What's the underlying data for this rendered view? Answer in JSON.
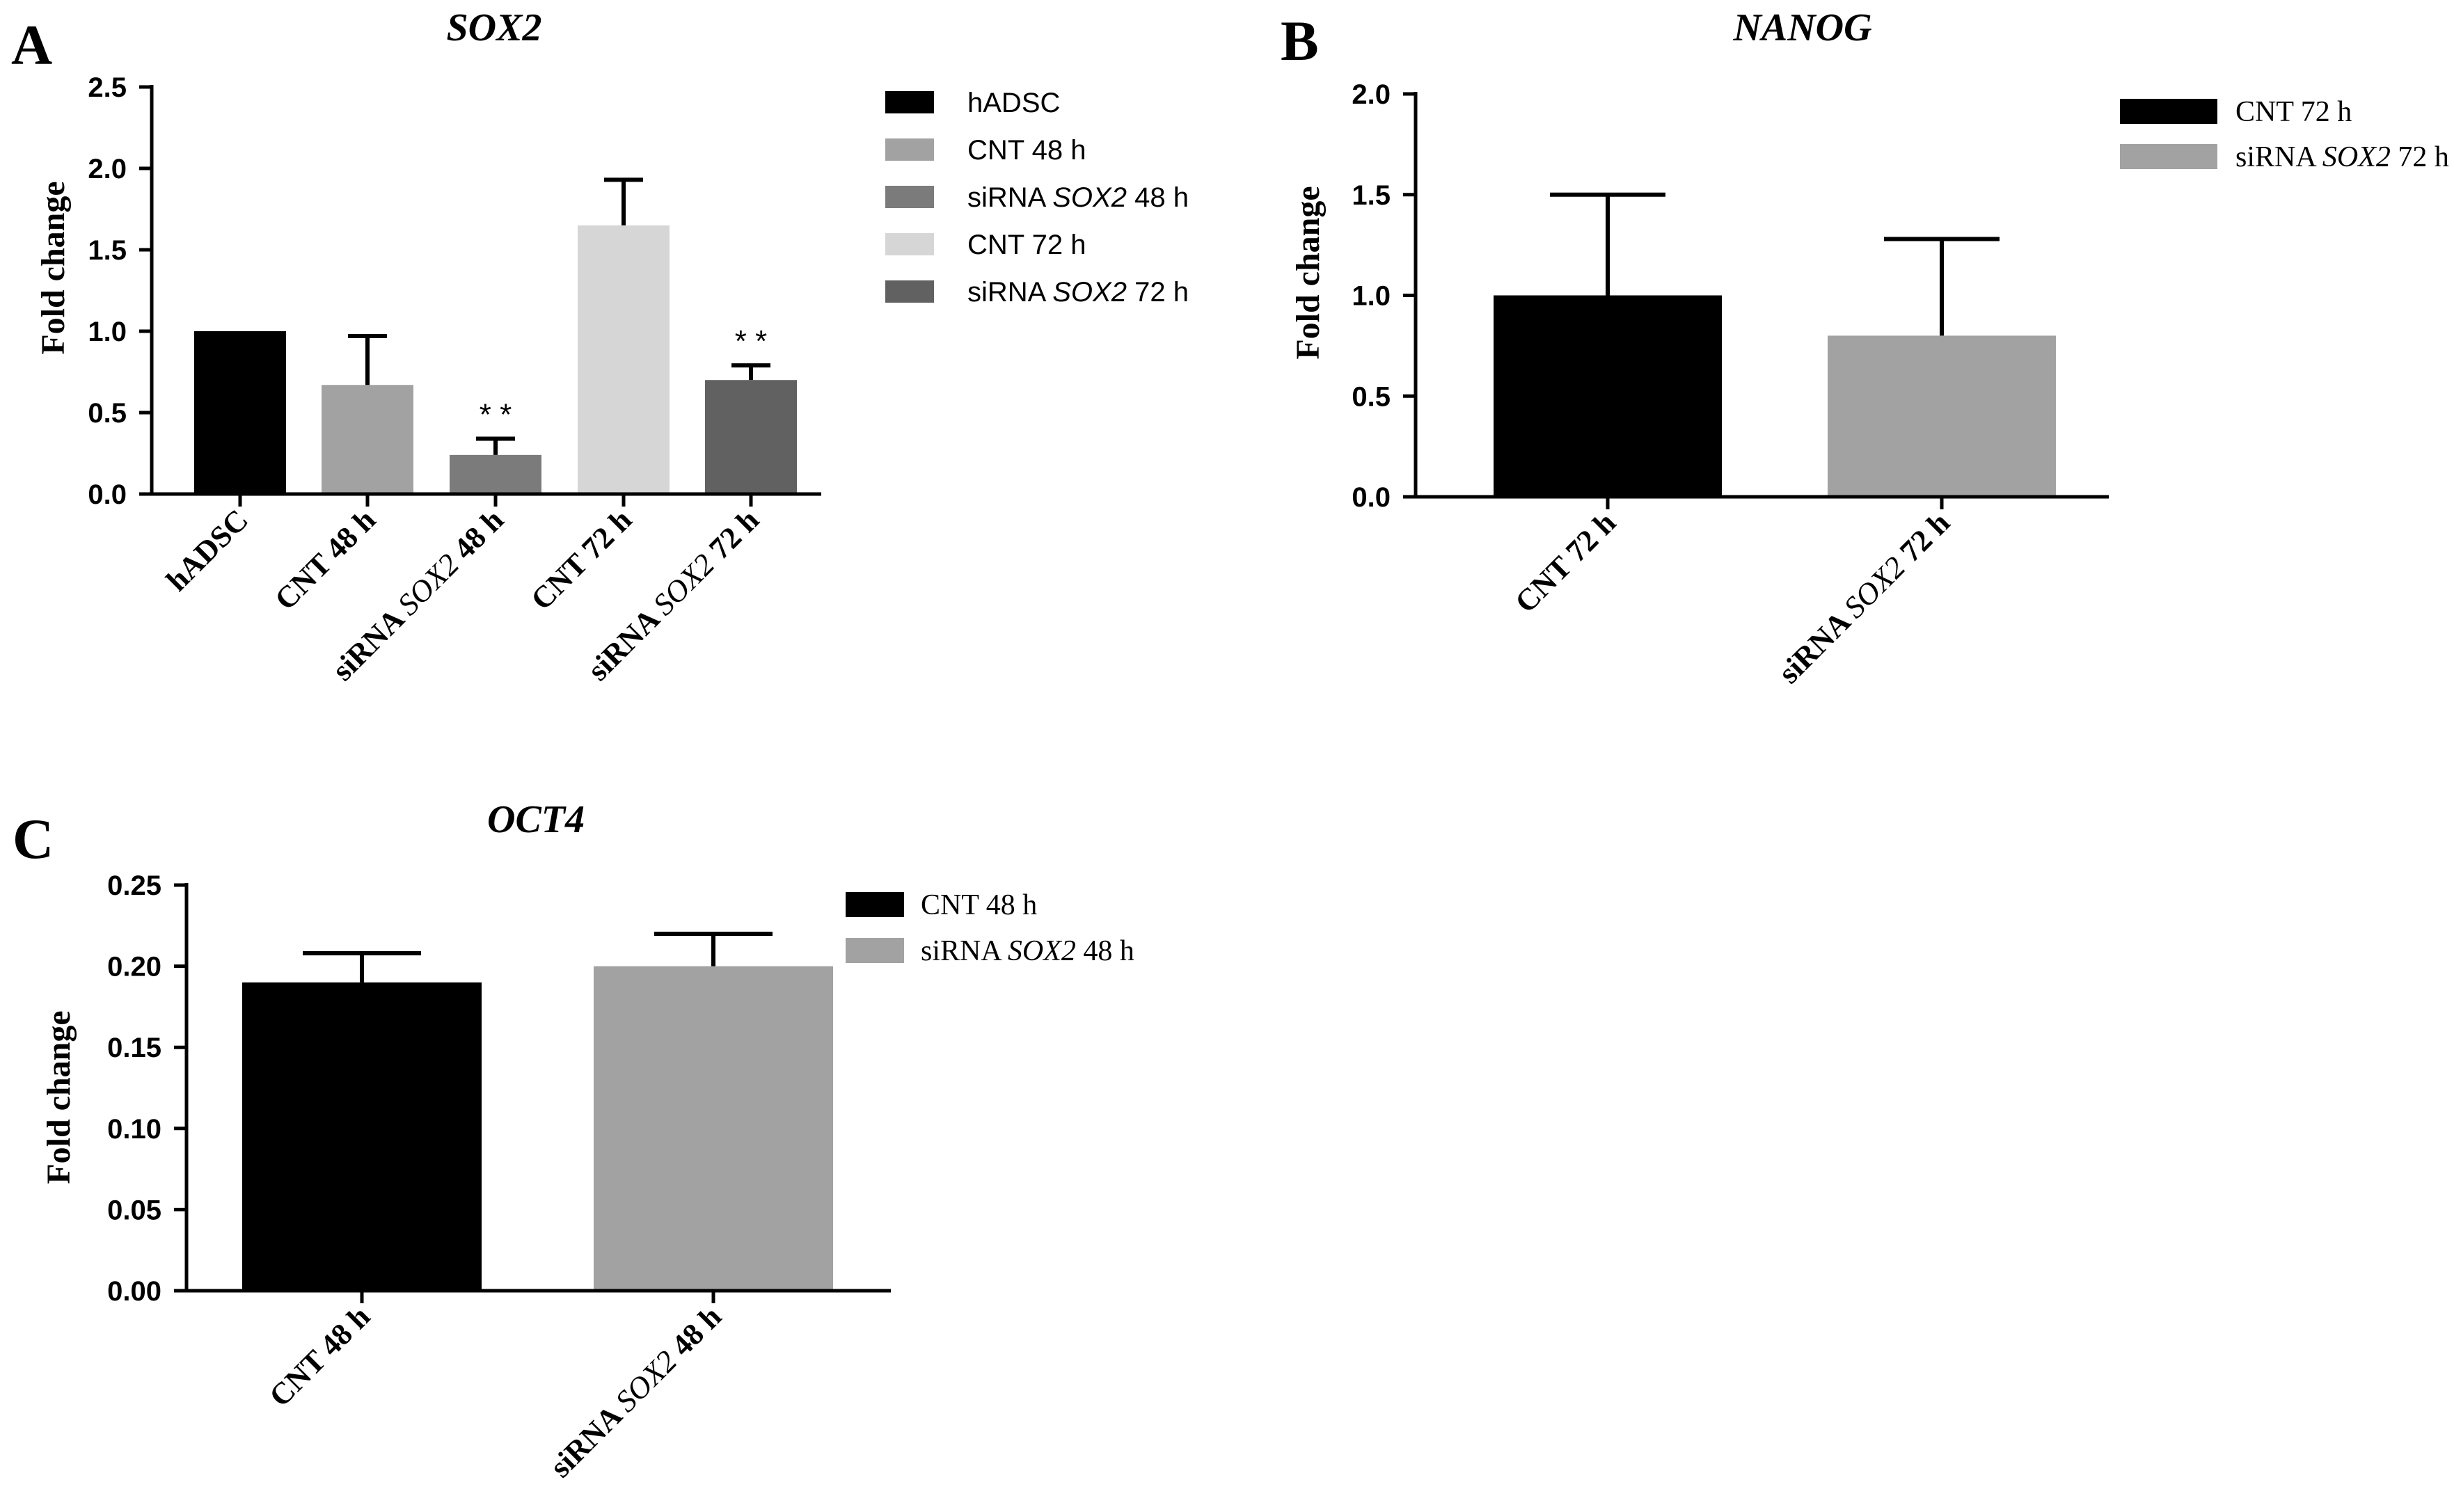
{
  "chart_data": [
    {
      "panel": "A",
      "type": "bar",
      "title": "SOX2",
      "ylabel": "Fold change",
      "ylim": [
        0,
        2.5
      ],
      "yticks": [
        "0.0",
        "0.5",
        "1.0",
        "1.5",
        "2.0",
        "2.5"
      ],
      "categories": [
        {
          "pre": "",
          "gene": "",
          "post": "hADSC"
        },
        {
          "pre": "",
          "gene": "",
          "post": "CNT 48 h"
        },
        {
          "pre": "siRNA ",
          "gene": "SOX2",
          "post": " 48 h"
        },
        {
          "pre": "",
          "gene": "",
          "post": "CNT 72 h"
        },
        {
          "pre": "siRNA ",
          "gene": "SOX2",
          "post": " 72 h"
        }
      ],
      "values": [
        1.0,
        0.67,
        0.24,
        1.65,
        0.7
      ],
      "errors": [
        0.0,
        0.3,
        0.1,
        0.28,
        0.09
      ],
      "colors": [
        "#000000",
        "#a2a2a2",
        "#7b7b7b",
        "#d6d6d6",
        "#616161"
      ],
      "significance": [
        "",
        "",
        "* *",
        "",
        "* *"
      ],
      "legend": [
        {
          "pre": "",
          "gene": "",
          "post": "hADSC",
          "color": "#000000"
        },
        {
          "pre": "",
          "gene": "",
          "post": "CNT 48 h",
          "color": "#a2a2a2"
        },
        {
          "pre": "siRNA ",
          "gene": "SOX2",
          "post": " 48 h",
          "color": "#7b7b7b"
        },
        {
          "pre": "",
          "gene": "",
          "post": "CNT 72 h",
          "color": "#d6d6d6"
        },
        {
          "pre": "siRNA ",
          "gene": "SOX2",
          "post": " 72 h",
          "color": "#616161"
        }
      ]
    },
    {
      "panel": "B",
      "type": "bar",
      "title": "NANOG",
      "ylabel": "Fold change",
      "ylim": [
        0,
        2.0
      ],
      "yticks": [
        "0.0",
        "0.5",
        "1.0",
        "1.5",
        "2.0"
      ],
      "categories": [
        {
          "pre": "",
          "gene": "",
          "post": "CNT 72 h"
        },
        {
          "pre": "siRNA ",
          "gene": "SOX2",
          "post": " 72 h"
        }
      ],
      "values": [
        1.0,
        0.8
      ],
      "errors": [
        0.5,
        0.48
      ],
      "colors": [
        "#000000",
        "#a2a2a2"
      ],
      "significance": [
        "",
        ""
      ],
      "legend": [
        {
          "pre": "",
          "gene": "",
          "post": "CNT 72 h",
          "color": "#000000"
        },
        {
          "pre": "siRNA ",
          "gene": "SOX2",
          "post": " 72 h",
          "color": "#a2a2a2"
        }
      ]
    },
    {
      "panel": "C",
      "type": "bar",
      "title": "OCT4",
      "ylabel": "Fold change",
      "ylim": [
        0,
        0.25
      ],
      "yticks": [
        "0.00",
        "0.05",
        "0.10",
        "0.15",
        "0.20",
        "0.25"
      ],
      "categories": [
        {
          "pre": "",
          "gene": "",
          "post": "CNT 48 h"
        },
        {
          "pre": "siRNA ",
          "gene": "SOX2",
          "post": " 48 h"
        }
      ],
      "values": [
        0.19,
        0.2
      ],
      "errors": [
        0.018,
        0.02
      ],
      "colors": [
        "#000000",
        "#a2a2a2"
      ],
      "significance": [
        "",
        ""
      ],
      "legend": [
        {
          "pre": "",
          "gene": "",
          "post": "CNT 48 h",
          "color": "#000000"
        },
        {
          "pre": "siRNA ",
          "gene": "SOX2",
          "post": " 48 h",
          "color": "#a2a2a2"
        }
      ]
    }
  ]
}
